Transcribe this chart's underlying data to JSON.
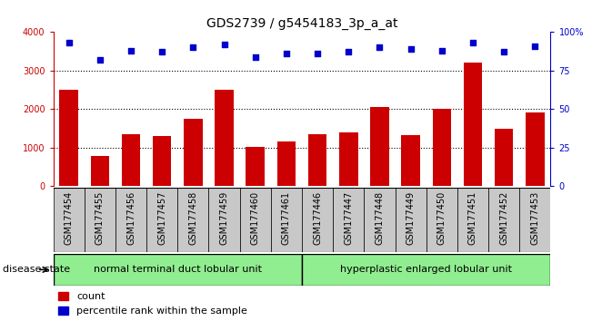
{
  "title": "GDS2739 / g5454183_3p_a_at",
  "samples": [
    "GSM177454",
    "GSM177455",
    "GSM177456",
    "GSM177457",
    "GSM177458",
    "GSM177459",
    "GSM177460",
    "GSM177461",
    "GSM177446",
    "GSM177447",
    "GSM177448",
    "GSM177449",
    "GSM177450",
    "GSM177451",
    "GSM177452",
    "GSM177453"
  ],
  "counts": [
    2500,
    780,
    1340,
    1300,
    1750,
    2500,
    1020,
    1170,
    1360,
    1400,
    2050,
    1320,
    2000,
    3200,
    1480,
    1920
  ],
  "percentiles": [
    93,
    82,
    88,
    87,
    90,
    92,
    84,
    86,
    86,
    87,
    90,
    89,
    88,
    93,
    87,
    91
  ],
  "group1_label": "normal terminal duct lobular unit",
  "group2_label": "hyperplastic enlarged lobular unit",
  "group1_count": 8,
  "group2_count": 8,
  "bar_color": "#cc0000",
  "dot_color": "#0000cc",
  "ylim_left": [
    0,
    4000
  ],
  "ylim_right": [
    0,
    100
  ],
  "yticks_left": [
    0,
    1000,
    2000,
    3000,
    4000
  ],
  "yticks_right": [
    0,
    25,
    50,
    75,
    100
  ],
  "group1_color": "#90ee90",
  "group2_color": "#90ee90",
  "xtick_bg_color": "#c8c8c8",
  "disease_state_label": "disease state",
  "legend_count_label": "count",
  "legend_pct_label": "percentile rank within the sample",
  "bar_width": 0.6,
  "title_fontsize": 10,
  "tick_fontsize": 7,
  "label_fontsize": 8
}
